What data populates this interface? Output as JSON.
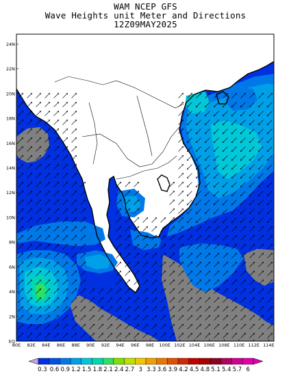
{
  "header": {
    "line1": "WAM NCEP GFS",
    "line2": "Wave Heights unit Meter and Directions",
    "line3": "12Z09MAY2025"
  },
  "axes": {
    "x_ticks": [
      "80E",
      "82E",
      "84E",
      "86E",
      "88E",
      "90E",
      "92E",
      "94E",
      "96E",
      "98E",
      "100E",
      "102E",
      "104E",
      "106E",
      "108E",
      "110E",
      "112E",
      "114E"
    ],
    "y_ticks": [
      "EQ",
      "2N",
      "4N",
      "6N",
      "8N",
      "10N",
      "12N",
      "14N",
      "16N",
      "18N",
      "20N",
      "22N",
      "24N"
    ]
  },
  "colorbar": {
    "labels": [
      "0.3",
      "0.6",
      "0.9",
      "1.2",
      "1.5",
      "1.8",
      "2.1",
      "2.4",
      "2.7",
      "3",
      "3.3",
      "3.6",
      "3.9",
      "4.2",
      "4.5",
      "4.8",
      "5.1",
      "5.4",
      "5.7",
      "6"
    ],
    "colors": [
      "#0030e0",
      "#0050e8",
      "#0078e8",
      "#00a0e8",
      "#00c8d8",
      "#00d8b0",
      "#30e060",
      "#80e000",
      "#c0e000",
      "#f0c800",
      "#f0a000",
      "#e87800",
      "#e05000",
      "#d02800",
      "#c00000",
      "#a80000",
      "#900020",
      "#b00060",
      "#d00090",
      "#e000b0"
    ]
  },
  "colors": {
    "land_mask": "#808080",
    "low_wave": "#0030e0",
    "wave_0_9": "#0078e8",
    "wave_1_2": "#00a0e8",
    "wave_1_5": "#00c8d8",
    "wave_1_8": "#00d8b0",
    "wave_2_1": "#30e060"
  }
}
